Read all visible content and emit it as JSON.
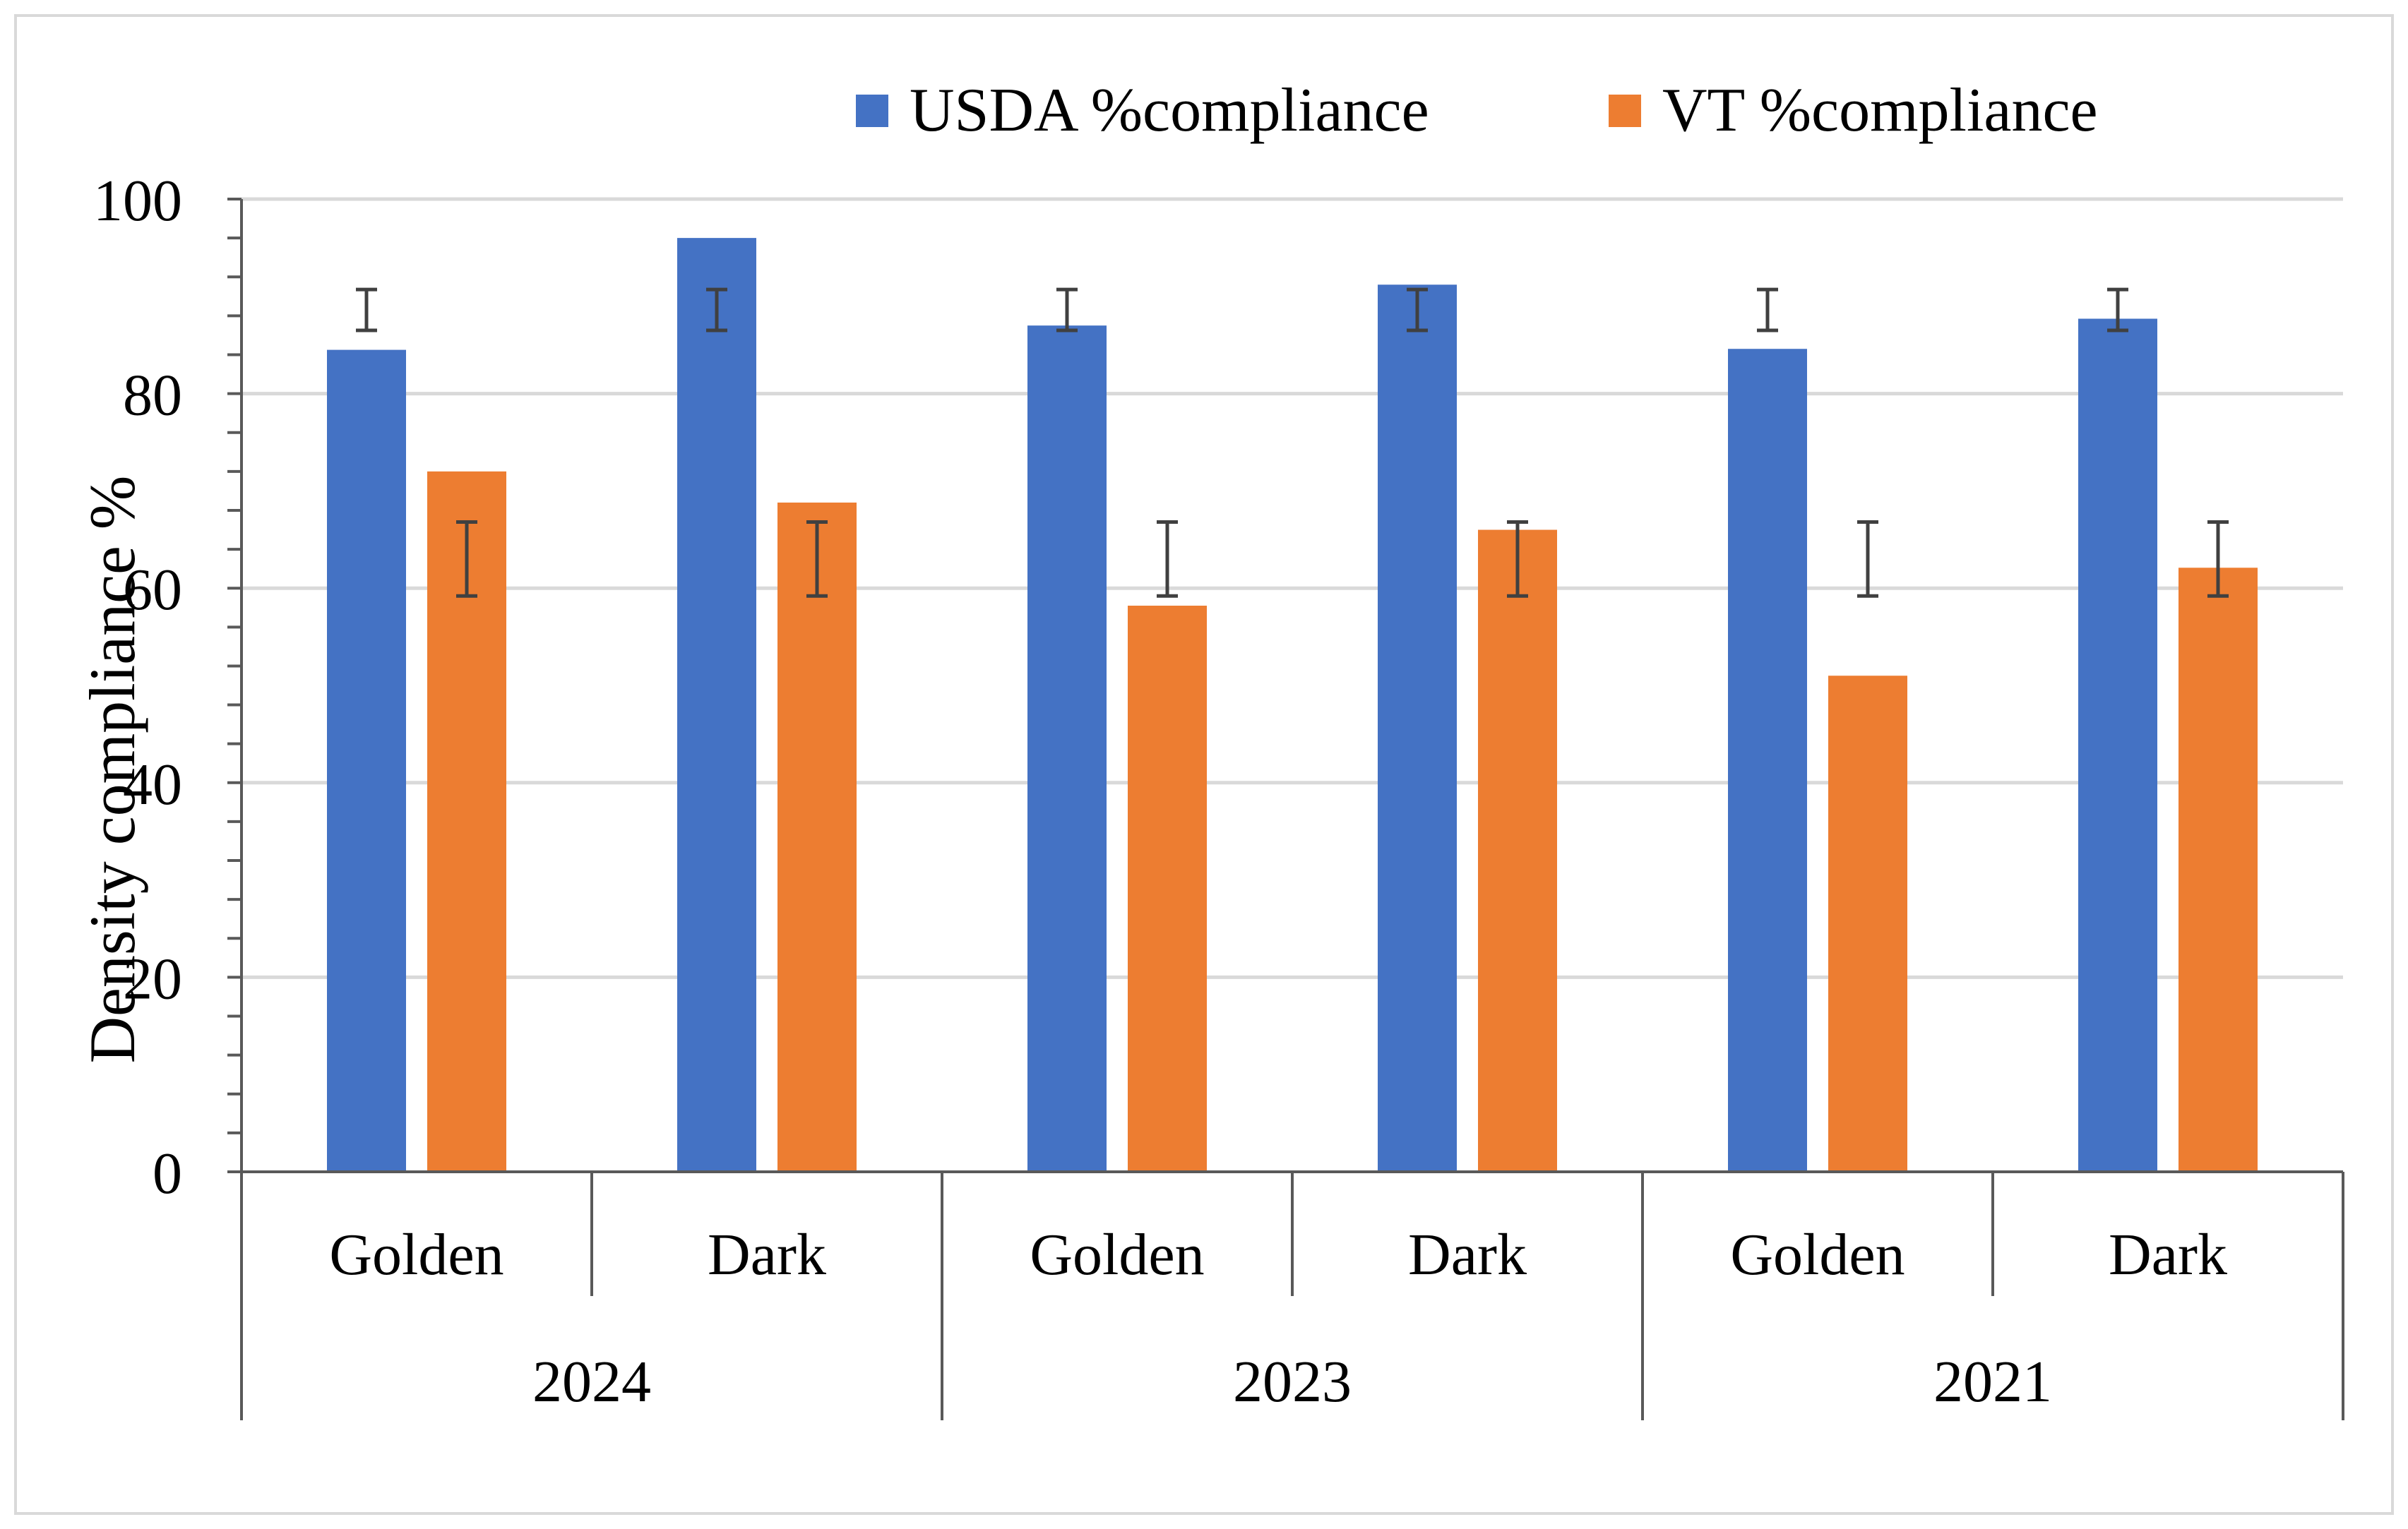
{
  "chart_data": {
    "type": "bar",
    "title": "",
    "xlabel": "",
    "ylabel": "Density compliance %",
    "ylim": [
      0,
      100
    ],
    "yticks": [
      0,
      20,
      40,
      60,
      80,
      100
    ],
    "grid": true,
    "legend_position": "top-right",
    "categories": [
      "Golden",
      "Dark",
      "Golden",
      "Dark",
      "Golden",
      "Dark"
    ],
    "groups": [
      {
        "label": "2024",
        "categories": [
          "Golden",
          "Dark"
        ]
      },
      {
        "label": "2023",
        "categories": [
          "Golden",
          "Dark"
        ]
      },
      {
        "label": "2021",
        "categories": [
          "Golden",
          "Dark"
        ]
      }
    ],
    "series": [
      {
        "name": "USDA %compliance",
        "color": "#4472c4",
        "values": [
          84.5,
          96,
          87,
          91.2,
          84.6,
          87.7
        ],
        "error_bars": [
          [
            86.5,
            90.7
          ],
          [
            86.5,
            90.7
          ],
          [
            86.5,
            90.7
          ],
          [
            86.5,
            90.7
          ],
          [
            86.5,
            90.7
          ],
          [
            86.5,
            90.7
          ]
        ]
      },
      {
        "name": "VT %compliance",
        "color": "#ed7d31",
        "values": [
          72,
          68.8,
          58.2,
          66,
          51,
          62.1
        ],
        "error_bars": [
          [
            59.2,
            66.8
          ],
          [
            59.2,
            66.8
          ],
          [
            59.2,
            66.8
          ],
          [
            59.2,
            66.8
          ],
          [
            59.2,
            66.8
          ],
          [
            59.2,
            66.8
          ]
        ]
      }
    ]
  }
}
